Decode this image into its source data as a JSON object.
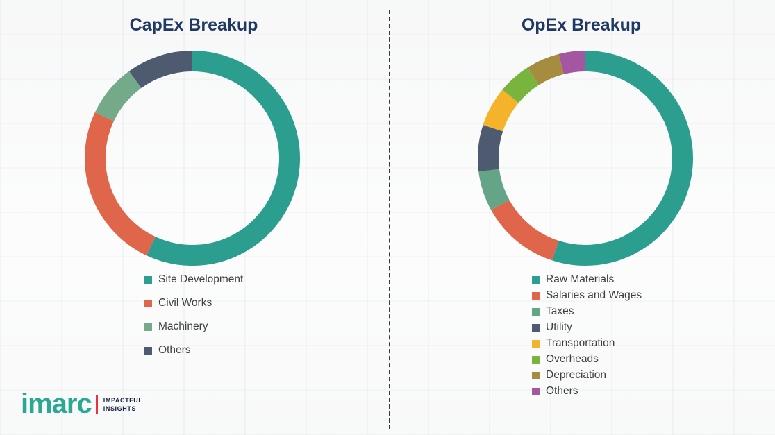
{
  "chart_data": [
    {
      "type": "pie",
      "subtype": "donut",
      "title": "CapEx Breakup",
      "legend_position": "bottom",
      "segments": [
        {
          "label": "Site Development",
          "value": 57,
          "color": "#2B9E90"
        },
        {
          "label": "Civil Works",
          "value": 25,
          "color": "#E0664B"
        },
        {
          "label": "Machinery",
          "value": 8,
          "color": "#74A98A"
        },
        {
          "label": "Others",
          "value": 10,
          "color": "#4D5A70"
        }
      ]
    },
    {
      "type": "pie",
      "subtype": "donut",
      "title": "OpEx Breakup",
      "legend_position": "bottom",
      "segments": [
        {
          "label": "Raw Materials",
          "value": 55,
          "color": "#2B9E90"
        },
        {
          "label": "Salaries and Wages",
          "value": 12,
          "color": "#E0664B"
        },
        {
          "label": "Taxes",
          "value": 6,
          "color": "#63A586"
        },
        {
          "label": "Utility",
          "value": 7,
          "color": "#4D5A70"
        },
        {
          "label": "Transportation",
          "value": 6,
          "color": "#F5B32C"
        },
        {
          "label": "Overheads",
          "value": 5,
          "color": "#79B43F"
        },
        {
          "label": "Depreciation",
          "value": 5,
          "color": "#A68C3E"
        },
        {
          "label": "Others",
          "value": 4,
          "color": "#A456A0"
        }
      ]
    }
  ],
  "logo": {
    "brand": "imarc",
    "tagline": [
      "IMPACTFUL",
      "INSIGHTS"
    ],
    "brand_color": "#2BA894",
    "accent_color": "#E8353B"
  }
}
